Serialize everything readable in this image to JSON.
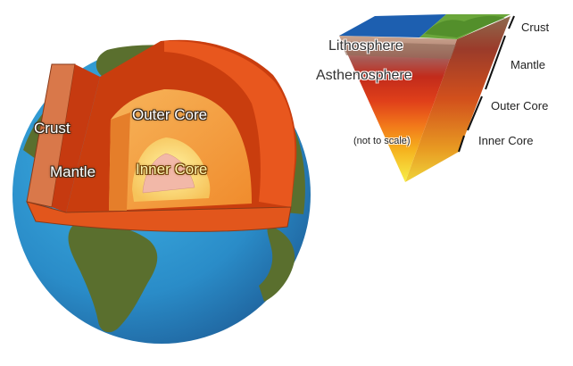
{
  "globe": {
    "labels": {
      "crust": "Crust",
      "mantle": "Mantle",
      "outer_core": "Outer Core",
      "inner_core": "Inner Core"
    }
  },
  "wedge": {
    "labels": {
      "lithosphere": "Lithosphere",
      "asthenosphere": "Asthenosphere",
      "note": "(not to scale)"
    },
    "side_labels": {
      "crust": "Crust",
      "mantle": "Mantle",
      "outer_core": "Outer Core",
      "inner_core": "Inner Core"
    }
  },
  "colors": {
    "ocean": "#2a95cf",
    "land": "#5a6f2e",
    "crust": "#d9784a",
    "mantle": "#e0531c",
    "outer_core": "#f5a347",
    "inner_core": "#f0b8a8"
  }
}
